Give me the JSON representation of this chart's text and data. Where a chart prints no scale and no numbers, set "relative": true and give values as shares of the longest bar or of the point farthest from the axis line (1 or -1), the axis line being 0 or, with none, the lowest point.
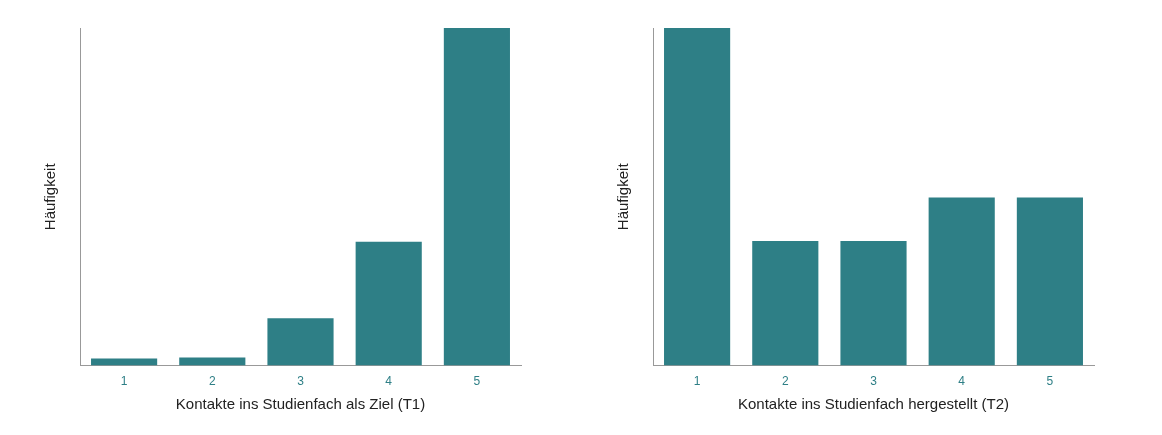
{
  "chart_data": [
    {
      "type": "bar",
      "relative": true,
      "xlabel": "Kontakte ins Studienfach als Ziel (T1)",
      "ylabel": "Häufigkeit",
      "categories": [
        "1",
        "2",
        "3",
        "4",
        "5"
      ],
      "values": [
        0.021,
        0.024,
        0.14,
        0.367,
        1
      ],
      "color": "#2e7f86",
      "grid": false,
      "legend": false
    },
    {
      "type": "bar",
      "relative": true,
      "xlabel": "Kontakte ins Studienfach hergestellt (T2)",
      "ylabel": "Häufigkeit",
      "categories": [
        "1",
        "2",
        "3",
        "4",
        "5"
      ],
      "values": [
        1,
        0.369,
        0.369,
        0.498,
        0.498
      ],
      "color": "#2e7f86",
      "grid": false,
      "legend": false
    }
  ]
}
